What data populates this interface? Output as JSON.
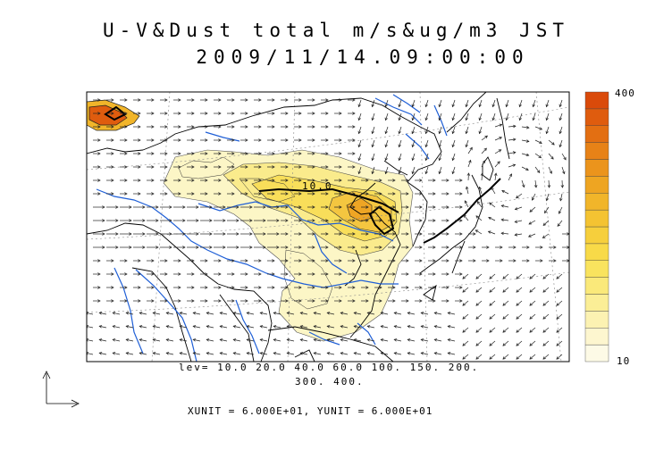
{
  "title_line1": "U-V&Dust total m/s&ug/m3 JST",
  "title_line2": "2009/11/14.09:00:00",
  "contour_inline_label": "10.0",
  "levels_line1": "lev= 10.0 20.0 40.0 60.0 100. 150. 200.",
  "levels_line2": "300. 400.",
  "unit_line": "XUNIT = 6.000E+01, YUNIT = 6.000E+01",
  "colorbar": {
    "max_label": "400",
    "min_label": "10",
    "colors": [
      "#fdfae6",
      "#fdf6cf",
      "#fcf2b2",
      "#fbee96",
      "#fae97a",
      "#f9e35e",
      "#f8da48",
      "#f6cf3c",
      "#f4c332",
      "#f1b52a",
      "#eea522",
      "#eb941c",
      "#e78217",
      "#e36f12",
      "#df5c0e",
      "#da4a0a"
    ]
  },
  "reference_vector_label": ""
}
